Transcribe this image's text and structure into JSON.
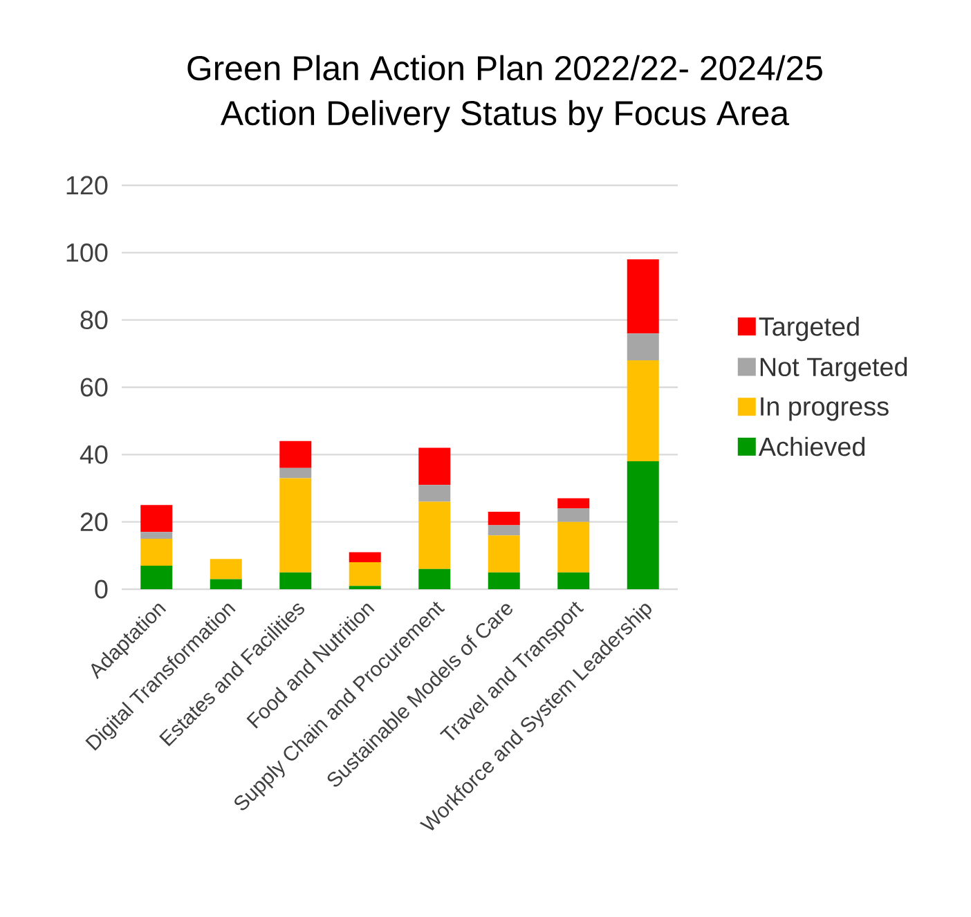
{
  "chart_data": {
    "type": "bar",
    "stacked": true,
    "title": "Green Plan Action Plan 2022/22- 2024/25",
    "subtitle": "Action Delivery Status by Focus Area",
    "categories": [
      "Adaptation",
      "Digital Transformation",
      "Estates and Facilities",
      "Food and Nutrition",
      "Supply Chain and Procurement",
      "Sustainable Models of Care",
      "Travel and Transport",
      "Workforce and System Leadership"
    ],
    "series": [
      {
        "name": "Achieved",
        "color": "#009900",
        "values": [
          7,
          3,
          5,
          1,
          6,
          5,
          5,
          38
        ]
      },
      {
        "name": "In progress",
        "color": "#ffc000",
        "values": [
          8,
          6,
          28,
          7,
          20,
          11,
          15,
          30
        ]
      },
      {
        "name": "Not Targeted",
        "color": "#a6a6a6",
        "values": [
          2,
          0,
          3,
          0,
          5,
          3,
          4,
          8
        ]
      },
      {
        "name": "Targeted",
        "color": "#ff0000",
        "values": [
          8,
          0,
          8,
          3,
          11,
          4,
          3,
          22
        ]
      }
    ],
    "ylim": [
      0,
      120
    ],
    "yticks": [
      0,
      20,
      40,
      60,
      80,
      100,
      120
    ],
    "grid": "y",
    "legend": "right"
  }
}
